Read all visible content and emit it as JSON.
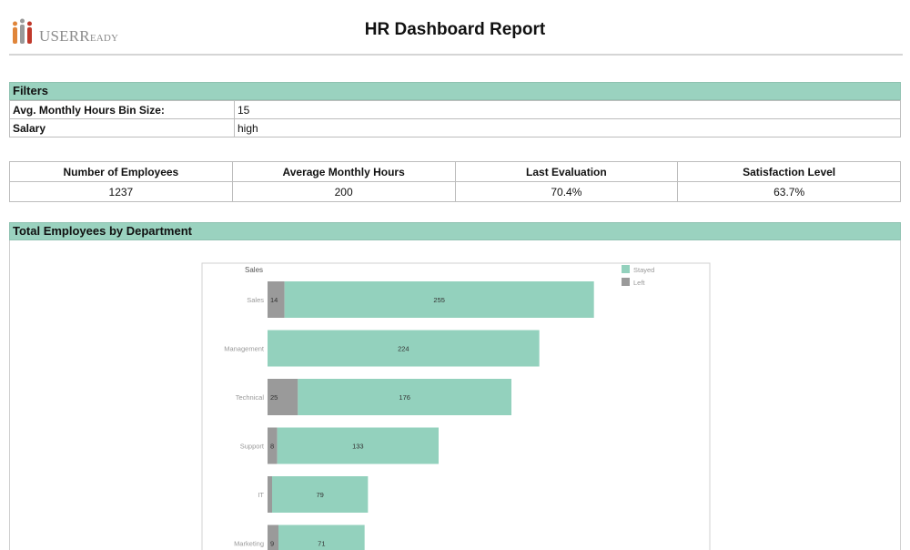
{
  "header": {
    "logo_text": "USER",
    "logo_text_small": "EADY",
    "logo_letter": "R",
    "title": "HR Dashboard Report"
  },
  "filters": {
    "heading": "Filters",
    "rows": [
      {
        "label": "Avg. Monthly Hours Bin Size:",
        "value": "15"
      },
      {
        "label": "Salary",
        "value": "high"
      }
    ]
  },
  "kpis": {
    "headers": [
      "Number of Employees",
      "Average Monthly Hours",
      "Last Evaluation",
      "Satisfaction Level"
    ],
    "values": [
      "1237",
      "200",
      "70.4%",
      "63.7%"
    ]
  },
  "chart_section": {
    "heading": "Total Employees by Department"
  },
  "colors": {
    "stayed": "#93d1bd",
    "left": "#9a9a9a",
    "section_bar": "#9ad2bf"
  },
  "chart_data": {
    "type": "bar",
    "orientation": "horizontal",
    "stacked": true,
    "title": "Sales",
    "categories": [
      "Sales",
      "Management",
      "Technical",
      "Support",
      "IT",
      "Marketing"
    ],
    "series": [
      {
        "name": "Left",
        "values": [
          14,
          null,
          25,
          8,
          null,
          9
        ],
        "labels": [
          "14",
          "",
          "25",
          "8",
          "",
          "9"
        ]
      },
      {
        "name": "Stayed",
        "values": [
          255,
          224,
          176,
          133,
          79,
          71
        ],
        "labels": [
          "255",
          "224",
          "176",
          "133",
          "79",
          "71"
        ]
      }
    ],
    "legend": [
      "Stayed",
      "Left"
    ],
    "legend_position": "top-right",
    "xlim": [
      0,
      300
    ]
  }
}
